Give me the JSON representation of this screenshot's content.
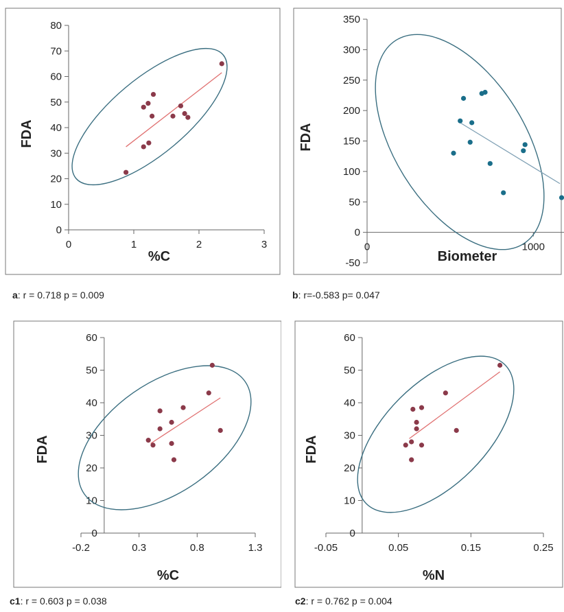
{
  "chart_data": [
    {
      "id": "a",
      "type": "scatter",
      "caption": {
        "label": "a",
        "text": ": r = 0.718 p = 0.009"
      },
      "xlabel": "%C",
      "ylabel": "FDA",
      "xlim": [
        0,
        3
      ],
      "ylim": [
        0,
        80
      ],
      "xticks": [
        0,
        1,
        2,
        3
      ],
      "yticks": [
        0,
        10,
        20,
        30,
        40,
        50,
        60,
        70,
        80
      ],
      "point_color": "#8b3a4a",
      "line_color": "#e07070",
      "ellipse_color": "#3a6e80",
      "points": [
        {
          "x": 0.88,
          "y": 22.5
        },
        {
          "x": 1.15,
          "y": 32.5
        },
        {
          "x": 1.15,
          "y": 48
        },
        {
          "x": 1.22,
          "y": 49.5
        },
        {
          "x": 1.23,
          "y": 34
        },
        {
          "x": 1.28,
          "y": 44.5
        },
        {
          "x": 1.3,
          "y": 53
        },
        {
          "x": 1.6,
          "y": 44.5
        },
        {
          "x": 1.72,
          "y": 48.5
        },
        {
          "x": 1.78,
          "y": 45.5
        },
        {
          "x": 1.83,
          "y": 44
        },
        {
          "x": 2.35,
          "y": 65
        }
      ],
      "trend": [
        [
          0.88,
          32.5
        ],
        [
          2.35,
          61.5
        ]
      ],
      "ellipse": {
        "cx": 1.45,
        "cy": 44,
        "rx": 1.75,
        "ry": 17.5,
        "angle_data": 0
      }
    },
    {
      "id": "b",
      "type": "scatter",
      "caption": {
        "label": "b",
        "text": ": r=-0.583 p= 0.047"
      },
      "xlabel": "Biometer",
      "ylabel": "FDA",
      "xlim": [
        0,
        1300
      ],
      "ylim": [
        -50,
        350
      ],
      "xticks": [
        0,
        1000
      ],
      "yticks": [
        -50,
        0,
        50,
        100,
        150,
        200,
        250,
        300,
        350
      ],
      "point_color": "#1a6e8a",
      "line_color": "#7fa0b4",
      "ellipse_color": "#3a6e80",
      "points": [
        {
          "x": 520,
          "y": 130
        },
        {
          "x": 560,
          "y": 183
        },
        {
          "x": 580,
          "y": 220
        },
        {
          "x": 620,
          "y": 148
        },
        {
          "x": 630,
          "y": 180
        },
        {
          "x": 690,
          "y": 228
        },
        {
          "x": 710,
          "y": 230
        },
        {
          "x": 740,
          "y": 113
        },
        {
          "x": 820,
          "y": 65
        },
        {
          "x": 940,
          "y": 134
        },
        {
          "x": 950,
          "y": 144
        },
        {
          "x": 1170,
          "y": 57
        }
      ],
      "trend": [
        [
          560,
          180
        ],
        [
          1160,
          80
        ]
      ]
    },
    {
      "id": "c1",
      "type": "scatter",
      "caption": {
        "label": "c1",
        "text": ": r = 0.603 p = 0.038"
      },
      "xlabel": "%C",
      "ylabel": "FDA",
      "xlim": [
        -0.2,
        1.3
      ],
      "ylim": [
        0,
        60
      ],
      "xticks": [
        -0.2,
        0.3,
        0.8,
        1.3
      ],
      "yticks": [
        0,
        10,
        20,
        30,
        40,
        50,
        60
      ],
      "point_color": "#8b3a4a",
      "line_color": "#e07070",
      "ellipse_color": "#3a6e80",
      "points": [
        {
          "x": 0.38,
          "y": 28.5
        },
        {
          "x": 0.42,
          "y": 27
        },
        {
          "x": 0.48,
          "y": 32
        },
        {
          "x": 0.48,
          "y": 37.5
        },
        {
          "x": 0.58,
          "y": 34
        },
        {
          "x": 0.58,
          "y": 27.5
        },
        {
          "x": 0.6,
          "y": 22.5
        },
        {
          "x": 0.68,
          "y": 38.5
        },
        {
          "x": 0.9,
          "y": 43
        },
        {
          "x": 0.93,
          "y": 51.5
        },
        {
          "x": 1.0,
          "y": 31.5
        }
      ],
      "trend": [
        [
          0.4,
          27.5
        ],
        [
          1.0,
          41.5
        ]
      ]
    },
    {
      "id": "c2",
      "type": "scatter",
      "caption": {
        "label": "c2",
        "text": ": r = 0.762 p = 0.004"
      },
      "xlabel": "%N",
      "ylabel": "FDA",
      "xlim": [
        -0.05,
        0.25
      ],
      "ylim": [
        0,
        60
      ],
      "xticks": [
        -0.05,
        0.05,
        0.15,
        0.25
      ],
      "yticks": [
        0,
        10,
        20,
        30,
        40,
        50,
        60
      ],
      "point_color": "#8b3a4a",
      "line_color": "#e07070",
      "ellipse_color": "#3a6e80",
      "points": [
        {
          "x": 0.06,
          "y": 27
        },
        {
          "x": 0.068,
          "y": 28
        },
        {
          "x": 0.068,
          "y": 22.5
        },
        {
          "x": 0.07,
          "y": 38
        },
        {
          "x": 0.075,
          "y": 34
        },
        {
          "x": 0.075,
          "y": 32
        },
        {
          "x": 0.082,
          "y": 38.5
        },
        {
          "x": 0.082,
          "y": 27
        },
        {
          "x": 0.115,
          "y": 43
        },
        {
          "x": 0.13,
          "y": 31.5
        },
        {
          "x": 0.19,
          "y": 51.5
        }
      ],
      "trend": [
        [
          0.065,
          29
        ],
        [
          0.19,
          49.5
        ]
      ]
    }
  ]
}
